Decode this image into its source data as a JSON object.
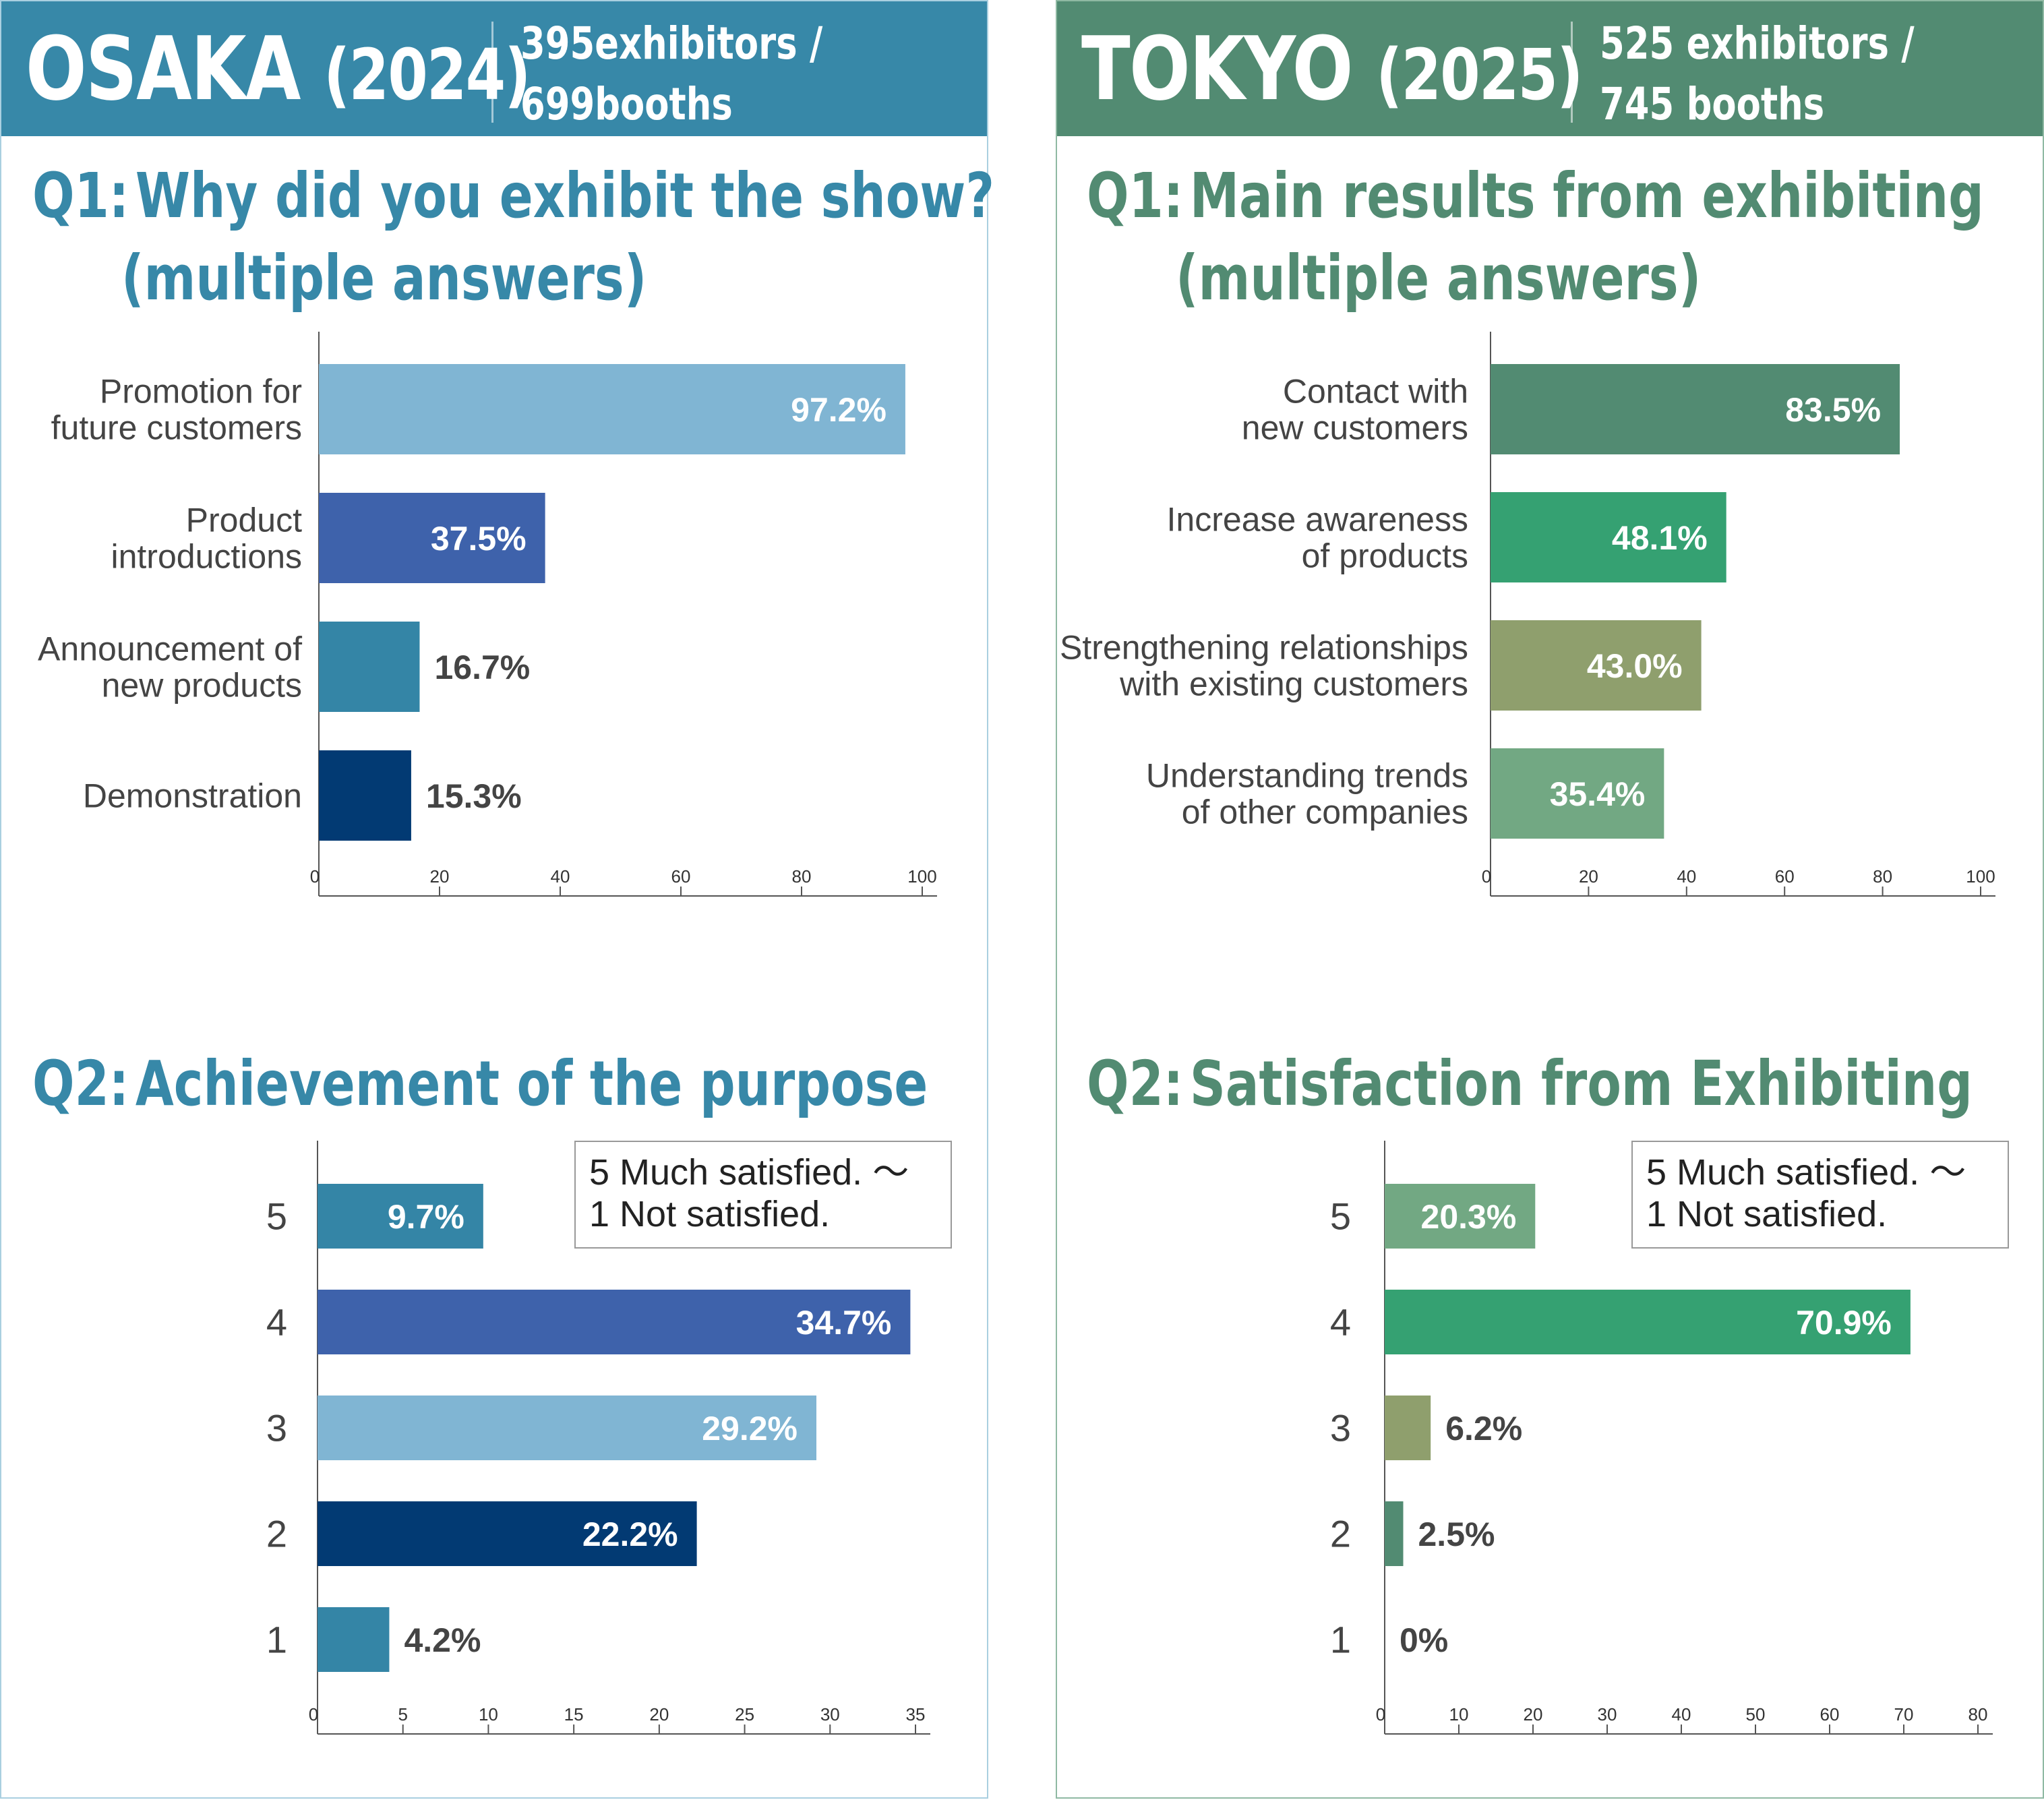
{
  "panels": [
    {
      "city": "OSAKA",
      "year": "(2024)",
      "stats_line1": "395exhibitors /",
      "stats_line2": "699booths",
      "accent": "#3788a8",
      "q1": {
        "number": "Q1:",
        "title_line1": "Why did you exhibit the show?",
        "title_line2": "(multiple answers)"
      },
      "q2": {
        "number": "Q2:",
        "title_line1": "Achievement of the purpose",
        "legend_line1": "5 Much satisfied.  ～",
        "legend_line2": "1 Not satisfied."
      }
    },
    {
      "city": "TOKYO",
      "year": "(2025)",
      "stats_line1": "525 exhibitors /",
      "stats_line2": "745 booths",
      "accent": "#528b72",
      "q1": {
        "number": "Q1:",
        "title_line1": "Main results from exhibiting",
        "title_line2": "(multiple answers)"
      },
      "q2": {
        "number": "Q2:",
        "title_line1": "Satisfaction from Exhibiting",
        "legend_line1": "5 Much satisfied.  ～",
        "legend_line2": "1 Not satisfied."
      }
    }
  ],
  "chart_data": [
    {
      "id": "osaka-q1",
      "type": "bar",
      "orientation": "horizontal",
      "title": "Why did you exhibit the show? (multiple answers)",
      "categories": [
        [
          "Promotion for",
          "future customers"
        ],
        [
          "Product",
          "introductions"
        ],
        [
          "Announcement of",
          "new products"
        ],
        [
          "Demonstration"
        ]
      ],
      "values": [
        97.2,
        37.5,
        16.7,
        15.3
      ],
      "labels": [
        "97.2%",
        "37.5%",
        "16.7%",
        "15.3%"
      ],
      "label_inside": [
        true,
        true,
        false,
        false
      ],
      "colors": [
        "#80b5d3",
        "#3e62ab",
        "#3485a6",
        "#023a73"
      ],
      "xlim": [
        0,
        100
      ],
      "ticks": [
        0,
        20,
        40,
        60,
        80,
        100
      ]
    },
    {
      "id": "osaka-q2",
      "type": "bar",
      "orientation": "horizontal",
      "title": "Achievement of the purpose",
      "categories": [
        "5",
        "4",
        "3",
        "2",
        "1"
      ],
      "values": [
        9.7,
        34.7,
        29.2,
        22.2,
        4.2
      ],
      "labels": [
        "9.7%",
        "34.7%",
        "29.2%",
        "22.2%",
        "4.2%"
      ],
      "label_inside": [
        true,
        true,
        true,
        true,
        false
      ],
      "colors": [
        "#3485a6",
        "#3e62ab",
        "#80b5d3",
        "#023a73",
        "#3485a6"
      ],
      "xlim": [
        0,
        35
      ],
      "ticks": [
        0,
        5,
        10,
        15,
        20,
        25,
        30,
        35
      ]
    },
    {
      "id": "tokyo-q1",
      "type": "bar",
      "orientation": "horizontal",
      "title": "Main results from exhibiting (multiple answers)",
      "categories": [
        [
          "Contact with",
          "new customers"
        ],
        [
          "Increase awareness",
          "of products"
        ],
        [
          "Strengthening relationships",
          "with existing customers"
        ],
        [
          "Understanding trends",
          "of other companies"
        ]
      ],
      "values": [
        83.5,
        48.1,
        43.0,
        35.4
      ],
      "labels": [
        "83.5%",
        "48.1%",
        "43.0%",
        "35.4%"
      ],
      "label_inside": [
        true,
        true,
        true,
        true
      ],
      "colors": [
        "#528b72",
        "#35a172",
        "#8f9f6d",
        "#72a883"
      ],
      "xlim": [
        0,
        100
      ],
      "ticks": [
        0,
        20,
        40,
        60,
        80,
        100
      ]
    },
    {
      "id": "tokyo-q2",
      "type": "bar",
      "orientation": "horizontal",
      "title": "Satisfaction from Exhibiting",
      "categories": [
        "5",
        "4",
        "3",
        "2",
        "1"
      ],
      "values": [
        20.3,
        70.9,
        6.2,
        2.5,
        0
      ],
      "labels": [
        "20.3%",
        "70.9%",
        "6.2%",
        "2.5%",
        "0%"
      ],
      "label_inside": [
        true,
        true,
        false,
        false,
        false
      ],
      "colors": [
        "#72a883",
        "#35a172",
        "#8f9f6d",
        "#528b72",
        "#528b72"
      ],
      "xlim": [
        0,
        80
      ],
      "ticks": [
        0,
        10,
        20,
        30,
        40,
        50,
        60,
        70,
        80
      ]
    }
  ]
}
